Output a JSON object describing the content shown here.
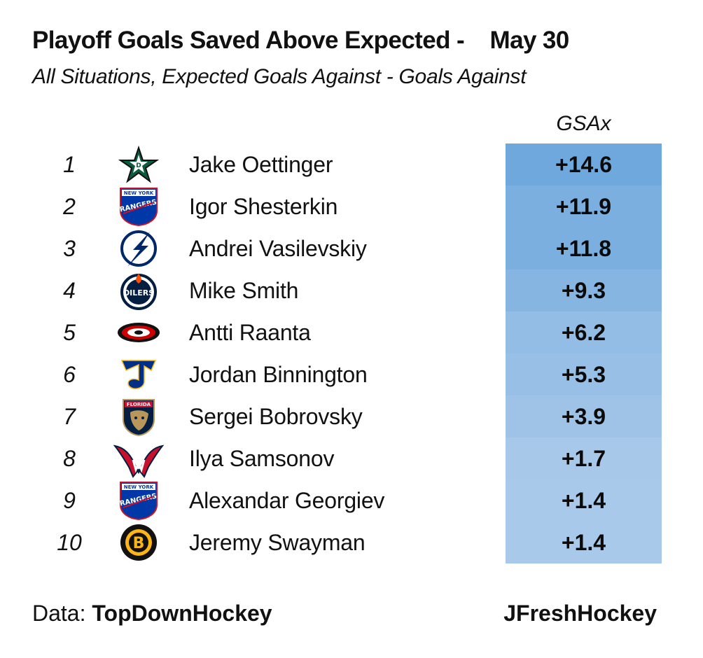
{
  "title": "Playoff Goals Saved Above Expected -    May 30",
  "subtitle": "All Situations, Expected Goals Against - Goals Against",
  "footer": {
    "data_prefix": "Data: ",
    "data_source": "TopDownHockey",
    "credit": "JFreshHockey"
  },
  "colors": {
    "cell_high": "#6fa8dc",
    "cell_low": "#a9c9ea"
  },
  "chart_data": {
    "type": "table",
    "title": "Playoff Goals Saved Above Expected - May 30",
    "subtitle": "All Situations, Expected Goals Against - Goals Against",
    "column_header": "GSAx",
    "rows": [
      {
        "rank": "1",
        "logo": "dallas-stars-logo",
        "name": "Jake Oettinger",
        "gsax_label": "+14.6",
        "gsax": 14.6
      },
      {
        "rank": "2",
        "logo": "new-york-rangers-logo",
        "name": "Igor Shesterkin",
        "gsax_label": "+11.9",
        "gsax": 11.9
      },
      {
        "rank": "3",
        "logo": "tampa-bay-lightning-logo",
        "name": "Andrei Vasilevskiy",
        "gsax_label": "+11.8",
        "gsax": 11.8
      },
      {
        "rank": "4",
        "logo": "edmonton-oilers-logo",
        "name": "Mike Smith",
        "gsax_label": "+9.3",
        "gsax": 9.3
      },
      {
        "rank": "5",
        "logo": "carolina-hurricanes-logo",
        "name": "Antti Raanta",
        "gsax_label": "+6.2",
        "gsax": 6.2
      },
      {
        "rank": "6",
        "logo": "st-louis-blues-logo",
        "name": "Jordan Binnington",
        "gsax_label": "+5.3",
        "gsax": 5.3
      },
      {
        "rank": "7",
        "logo": "florida-panthers-logo",
        "name": "Sergei Bobrovsky",
        "gsax_label": "+3.9",
        "gsax": 3.9
      },
      {
        "rank": "8",
        "logo": "washington-capitals-logo",
        "name": "Ilya Samsonov",
        "gsax_label": "+1.7",
        "gsax": 1.7
      },
      {
        "rank": "9",
        "logo": "new-york-rangers-logo",
        "name": "Alexandar Georgiev",
        "gsax_label": "+1.4",
        "gsax": 1.4
      },
      {
        "rank": "10",
        "logo": "boston-bruins-logo",
        "name": "Jeremy Swayman",
        "gsax_label": "+1.4",
        "gsax": 1.4
      }
    ]
  }
}
